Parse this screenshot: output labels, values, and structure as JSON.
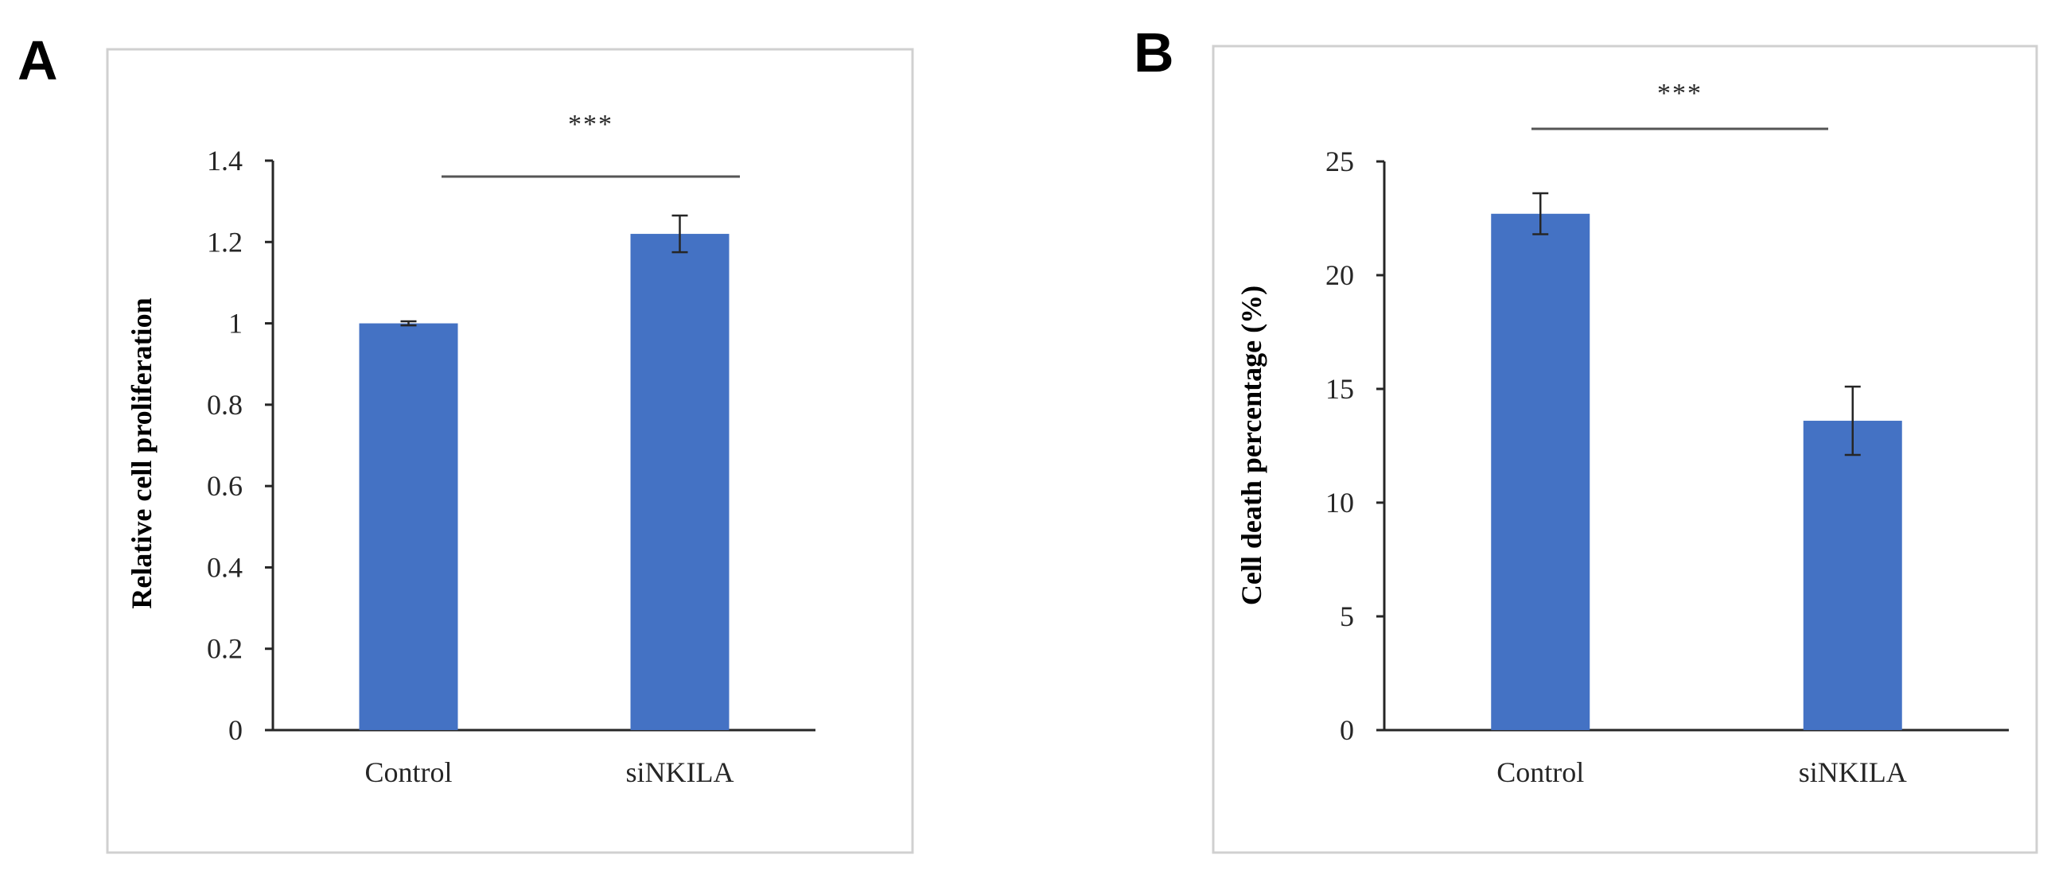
{
  "figure": {
    "bar_color": "#4472c4",
    "panels": [
      "A",
      "B"
    ]
  },
  "chart_data": [
    {
      "panel": "A",
      "type": "bar",
      "title": "",
      "categories": [
        "Control",
        "siNKILA"
      ],
      "values": [
        1.0,
        1.22
      ],
      "errors": [
        0.005,
        0.045
      ],
      "xlabel": "",
      "ylabel": "Relative cell  proliferation",
      "ylim": [
        0,
        1.4
      ],
      "yticks": [
        0,
        0.2,
        0.4,
        0.6,
        0.8,
        1,
        1.2,
        1.4
      ],
      "ytick_labels": [
        "0",
        "0.2",
        "0.4",
        "0.6",
        "0.8",
        "1",
        "1.2",
        "1.4"
      ],
      "significance": {
        "label": "***",
        "from": "Control",
        "to": "siNKILA"
      },
      "grid": false,
      "legend": "none"
    },
    {
      "panel": "B",
      "type": "bar",
      "title": "",
      "categories": [
        "Control",
        "siNKILA"
      ],
      "values": [
        22.7,
        13.6
      ],
      "errors": [
        0.9,
        1.5
      ],
      "xlabel": "",
      "ylabel": "Cell death percentage  (%)",
      "ylim": [
        0,
        25
      ],
      "yticks": [
        0,
        5,
        10,
        15,
        20,
        25
      ],
      "ytick_labels": [
        "0",
        "5",
        "10",
        "15",
        "20",
        "25"
      ],
      "significance": {
        "label": "***",
        "from": "Control",
        "to": "siNKILA"
      },
      "grid": false,
      "legend": "none"
    }
  ]
}
